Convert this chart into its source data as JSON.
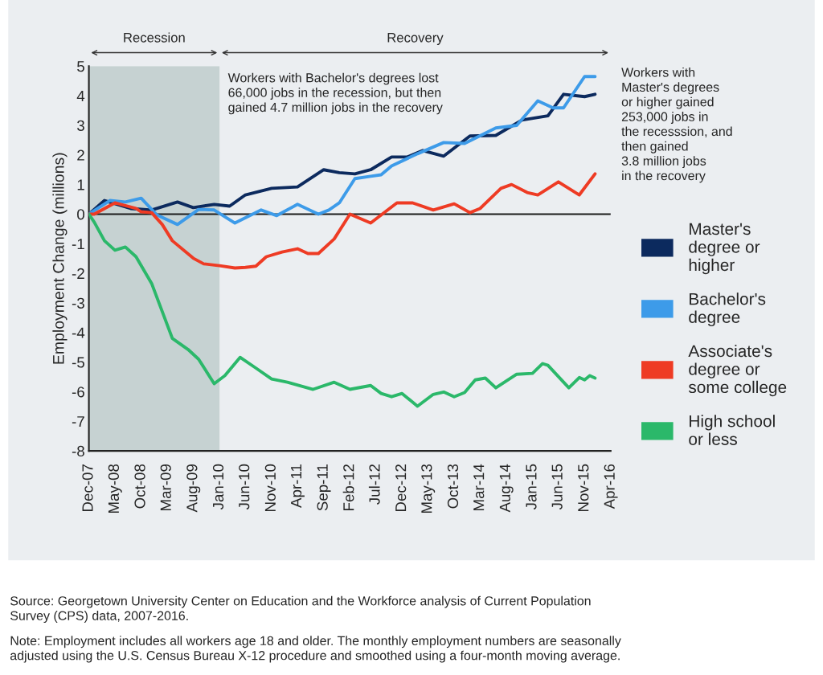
{
  "chart_data": {
    "type": "line",
    "ylabel": "Employment Change (millions)",
    "xlim": [
      "2007-12",
      "2016-04"
    ],
    "xticks": [
      {
        "value": "2007-12",
        "label": "Dec-07"
      },
      {
        "value": "2008-05",
        "label": "May-08"
      },
      {
        "value": "2008-10",
        "label": "Oct-08"
      },
      {
        "value": "2009-03",
        "label": "Mar-09"
      },
      {
        "value": "2009-08",
        "label": "Aug-09"
      },
      {
        "value": "2010-01",
        "label": "Jan-10"
      },
      {
        "value": "2010-06",
        "label": "Jun-10"
      },
      {
        "value": "2010-11",
        "label": "Nov-10"
      },
      {
        "value": "2011-04",
        "label": "Apr-11"
      },
      {
        "value": "2011-09",
        "label": "Sep-11"
      },
      {
        "value": "2012-02",
        "label": "Feb-12"
      },
      {
        "value": "2012-07",
        "label": "Jul-12"
      },
      {
        "value": "2012-12",
        "label": "Dec-12"
      },
      {
        "value": "2013-05",
        "label": "May-13"
      },
      {
        "value": "2013-10",
        "label": "Oct-13"
      },
      {
        "value": "2014-03",
        "label": "Mar-14"
      },
      {
        "value": "2014-08",
        "label": "Aug-14"
      },
      {
        "value": "2015-01",
        "label": "Jan-15"
      },
      {
        "value": "2015-06",
        "label": "Jun-15"
      },
      {
        "value": "2015-11",
        "label": "Nov-15"
      },
      {
        "value": "2016-04",
        "label": "Apr-16"
      }
    ],
    "ylim": [
      -8,
      5
    ],
    "yticks": [
      -8,
      -7,
      -6,
      -5,
      -4,
      -3,
      -2,
      -1,
      0,
      1,
      2,
      3,
      4,
      5
    ],
    "grid": false,
    "legend": "right",
    "marker": "none",
    "line_style": "solid",
    "ref_lines": [
      {
        "axis": "y",
        "value": 0,
        "color": "#1a1a1a"
      }
    ],
    "bands": [
      {
        "axis": "x",
        "from": "2007-12",
        "to": "2010-01",
        "label": "Recession",
        "color": "#c6d2d2"
      }
    ],
    "series": [
      {
        "name": "Master's\ndegree or\nhigher",
        "color": "#0c2a5e",
        "x": [
          "2007-12",
          "2008-03",
          "2008-08",
          "2008-12",
          "2009-05",
          "2009-08",
          "2009-12",
          "2010-03",
          "2010-06",
          "2010-11",
          "2011-04",
          "2011-09",
          "2011-12",
          "2012-03",
          "2012-06",
          "2012-10",
          "2013-01",
          "2013-04",
          "2013-08",
          "2014-01",
          "2014-06",
          "2014-11",
          "2015-04",
          "2015-07",
          "2015-11",
          "2016-01"
        ],
        "values": [
          0,
          0.46,
          0.19,
          0.14,
          0.41,
          0.22,
          0.33,
          0.27,
          0.65,
          0.87,
          0.92,
          1.5,
          1.4,
          1.36,
          1.5,
          1.93,
          1.93,
          2.15,
          1.96,
          2.64,
          2.66,
          3.18,
          3.32,
          4.05,
          3.97,
          4.05
        ]
      },
      {
        "name": "Bachelor's\ndegree",
        "color": "#3d9be9",
        "x": [
          "2007-12",
          "2008-04",
          "2008-07",
          "2008-10",
          "2009-01",
          "2009-05",
          "2009-09",
          "2009-12",
          "2010-04",
          "2010-09",
          "2010-12",
          "2011-04",
          "2011-08",
          "2011-10",
          "2011-12",
          "2012-03",
          "2012-06",
          "2012-08",
          "2012-10",
          "2013-03",
          "2013-08",
          "2013-12",
          "2014-06",
          "2014-10",
          "2015-02",
          "2015-05",
          "2015-07",
          "2015-11",
          "2016-01"
        ],
        "values": [
          0,
          0.46,
          0.41,
          0.54,
          -0.03,
          -0.35,
          0.16,
          0.14,
          -0.3,
          0.14,
          -0.05,
          0.33,
          0,
          0.14,
          0.38,
          1.2,
          1.28,
          1.33,
          1.63,
          2.04,
          2.42,
          2.39,
          2.91,
          3.0,
          3.83,
          3.59,
          3.59,
          4.65,
          4.65
        ]
      },
      {
        "name": "Associate's\ndegree or\nsome college",
        "color": "#ee3b24",
        "x": [
          "2007-12",
          "2008-01",
          "2008-05",
          "2008-09",
          "2008-10",
          "2008-12",
          "2009-02",
          "2009-04",
          "2009-08",
          "2009-10",
          "2010-01",
          "2010-04",
          "2010-06",
          "2010-08",
          "2010-10",
          "2011-01",
          "2011-04",
          "2011-06",
          "2011-08",
          "2011-11",
          "2012-02",
          "2012-06",
          "2012-11",
          "2013-02",
          "2013-06",
          "2013-10",
          "2014-01",
          "2014-03",
          "2014-07",
          "2014-09",
          "2014-12",
          "2015-02",
          "2015-06",
          "2015-10",
          "2016-01"
        ],
        "values": [
          0,
          0,
          0.38,
          0.19,
          0.08,
          0.05,
          -0.35,
          -0.9,
          -1.49,
          -1.68,
          -1.74,
          -1.82,
          -1.8,
          -1.76,
          -1.44,
          -1.28,
          -1.17,
          -1.33,
          -1.33,
          -0.84,
          0,
          -0.3,
          0.38,
          0.38,
          0.14,
          0.35,
          0.05,
          0.19,
          0.87,
          1.0,
          0.73,
          0.65,
          1.09,
          0.65,
          1.36
        ]
      },
      {
        "name": "High school\nor less",
        "color": "#2bb86a",
        "x": [
          "2007-12",
          "2008-01",
          "2008-03",
          "2008-05",
          "2008-07",
          "2008-09",
          "2008-12",
          "2009-04",
          "2009-07",
          "2009-09",
          "2009-12",
          "2010-02",
          "2010-05",
          "2010-08",
          "2010-11",
          "2011-02",
          "2011-07",
          "2011-11",
          "2012-02",
          "2012-06",
          "2012-08",
          "2012-10",
          "2012-12",
          "2013-03",
          "2013-06",
          "2013-08",
          "2013-10",
          "2013-12",
          "2014-02",
          "2014-04",
          "2014-06",
          "2014-10",
          "2015-01",
          "2015-03",
          "2015-04",
          "2015-08",
          "2015-10",
          "2015-11",
          "2015-12",
          "2016-01"
        ],
        "values": [
          0,
          -0.27,
          -0.9,
          -1.22,
          -1.11,
          -1.44,
          -2.34,
          -4.2,
          -4.57,
          -4.9,
          -5.73,
          -5.46,
          -4.84,
          -5.2,
          -5.57,
          -5.68,
          -5.92,
          -5.68,
          -5.92,
          -5.79,
          -6.06,
          -6.17,
          -6.06,
          -6.49,
          -6.09,
          -6.01,
          -6.17,
          -6.03,
          -5.6,
          -5.54,
          -5.87,
          -5.41,
          -5.38,
          -5.05,
          -5.11,
          -5.87,
          -5.52,
          -5.6,
          -5.46,
          -5.54
        ]
      }
    ],
    "annotations": [
      "Recovery",
      "Workers with Bachelor's degrees lost\n66,000 jobs in the recession, but then\ngained 4.7 million jobs in the recovery",
      "Workers with\nMaster's degrees\nor higher gained\n253,000 jobs in\nthe recesssion, and\nthen gained\n3.8 million jobs\nin the recovery",
      "Source: Georgetown University Center on Education and the Workforce analysis of Current Population\nSurvey (CPS) data, 2007-2016.",
      "Note: Employment includes all workers age 18 and older. The monthly employment numbers are seasonally\nadjusted using the U.S. Census Bureau X-12 procedure and smoothed using a four-month moving average."
    ]
  }
}
